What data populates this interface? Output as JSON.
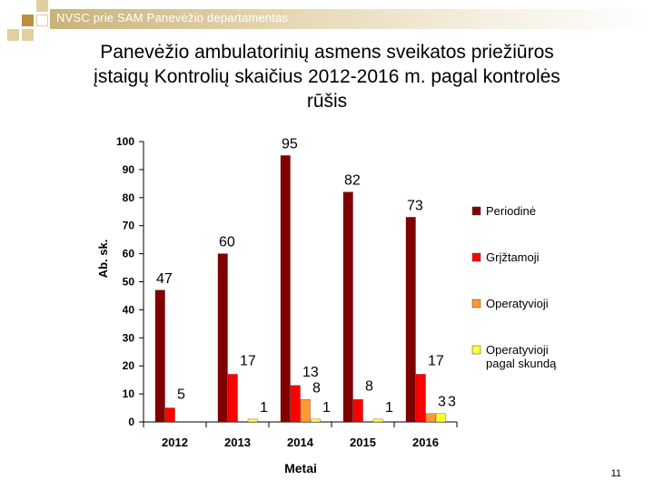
{
  "header": {
    "text": "NVSC prie SAM Panevėžio departamentas"
  },
  "title": {
    "line1": "Panevėžio ambulatorinių asmens sveikatos priežiūros",
    "line2": "įstaigų Kontrolių skaičius 2012-2016 m. pagal kontrolės",
    "line3": "rūšis"
  },
  "page_number": "11",
  "colors": {
    "accent_squares": [
      "#e1cfa0",
      "#b8903f",
      "#ffffff"
    ],
    "header_bar": "#c9b27a"
  },
  "chart_data": {
    "type": "bar",
    "title": "Panevėžio ambulatorinių asmens sveikatos priežiūros įstaigų Kontrolių skaičius 2012-2016 m. pagal kontrolės rūšis",
    "xlabel": "Metai",
    "ylabel": "Ab. sk.",
    "ylim": [
      0,
      100
    ],
    "yticks": [
      0,
      10,
      20,
      30,
      40,
      50,
      60,
      70,
      80,
      90,
      100
    ],
    "categories": [
      "2012",
      "2013",
      "2014",
      "2015",
      "2016"
    ],
    "legend_position": "right",
    "series": [
      {
        "name": "Periodinė",
        "color": "#800000",
        "values": [
          47,
          60,
          95,
          82,
          73
        ]
      },
      {
        "name": "Grįžtamoji",
        "color": "#ff0000",
        "values": [
          5,
          17,
          13,
          8,
          17
        ]
      },
      {
        "name": "Operatyvioji",
        "color": "#ff9933",
        "values": [
          0,
          0,
          8,
          0,
          3
        ]
      },
      {
        "name": "Operatyvioji pagal skundą",
        "legend_lines": [
          "Operatyvioji",
          "pagal skundą"
        ],
        "color": "#ffff33",
        "values": [
          0,
          1,
          1,
          1,
          3
        ]
      }
    ]
  }
}
